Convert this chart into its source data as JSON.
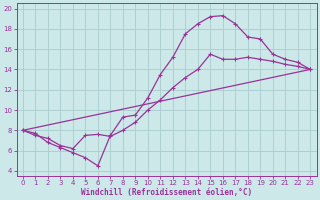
{
  "xlabel": "Windchill (Refroidissement éolien,°C)",
  "background_color": "#cce8e8",
  "grid_color": "#aacccc",
  "line_color": "#993399",
  "spine_color": "#993399",
  "xlim": [
    -0.5,
    23.5
  ],
  "ylim": [
    3.5,
    20.5
  ],
  "xticks": [
    0,
    1,
    2,
    3,
    4,
    5,
    6,
    7,
    8,
    9,
    10,
    11,
    12,
    13,
    14,
    15,
    16,
    17,
    18,
    19,
    20,
    21,
    22,
    23
  ],
  "yticks": [
    4,
    6,
    8,
    10,
    12,
    14,
    16,
    18,
    20
  ],
  "series1_x": [
    0,
    1,
    2,
    3,
    4,
    5,
    6,
    7,
    8,
    9,
    10,
    11,
    12,
    13,
    14,
    15,
    16,
    17,
    18,
    19,
    20,
    21,
    22,
    23
  ],
  "series1_y": [
    8.0,
    7.7,
    6.8,
    6.3,
    5.8,
    5.3,
    4.5,
    7.5,
    9.3,
    9.5,
    11.2,
    13.5,
    15.2,
    17.5,
    18.5,
    19.2,
    19.3,
    18.5,
    17.2,
    17.0,
    15.5,
    15.0,
    14.7,
    14.0
  ],
  "series2_x": [
    0,
    1,
    2,
    3,
    4,
    5,
    6,
    7,
    8,
    9,
    10,
    11,
    12,
    13,
    14,
    15,
    16,
    17,
    18,
    19,
    20,
    21,
    22,
    23
  ],
  "series2_y": [
    8.0,
    7.5,
    7.2,
    6.5,
    6.2,
    7.5,
    7.6,
    7.4,
    8.0,
    8.8,
    10.0,
    11.0,
    12.2,
    13.2,
    14.0,
    15.5,
    15.0,
    15.0,
    15.2,
    15.0,
    14.8,
    14.5,
    14.3,
    14.0
  ],
  "series3_x": [
    0,
    23
  ],
  "series3_y": [
    8.0,
    14.0
  ]
}
